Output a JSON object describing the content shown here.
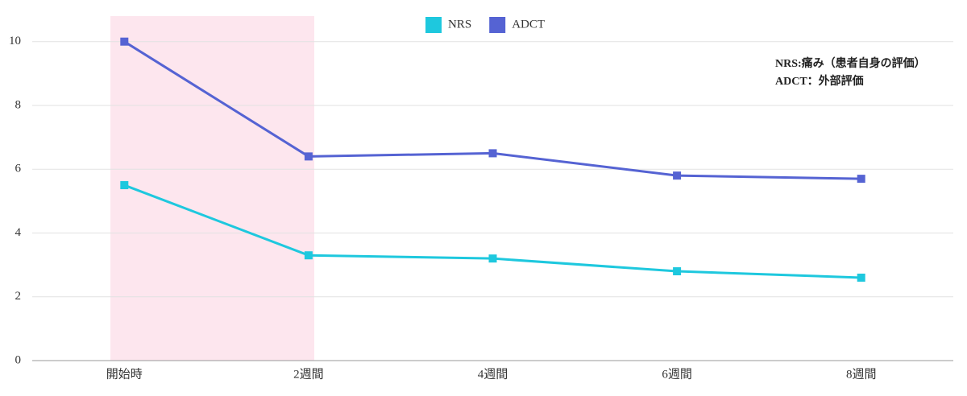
{
  "chart_data": {
    "type": "line",
    "categories": [
      "開始時",
      "2週間",
      "4週間",
      "6週間",
      "8週間"
    ],
    "series": [
      {
        "name": "NRS",
        "color": "#1ec8de",
        "values": [
          5.5,
          3.3,
          3.2,
          2.8,
          2.6
        ]
      },
      {
        "name": "ADCT",
        "color": "#5563d3",
        "values": [
          10,
          6.4,
          6.5,
          5.8,
          5.7
        ]
      }
    ],
    "ylim": [
      0,
      10.8
    ],
    "yticks": [
      0,
      2,
      4,
      6,
      8,
      10
    ],
    "grid": true,
    "legend": "top",
    "annotations": [
      "NRS:痛み（患者自身の評価）",
      "ADCT：外部評価"
    ]
  }
}
